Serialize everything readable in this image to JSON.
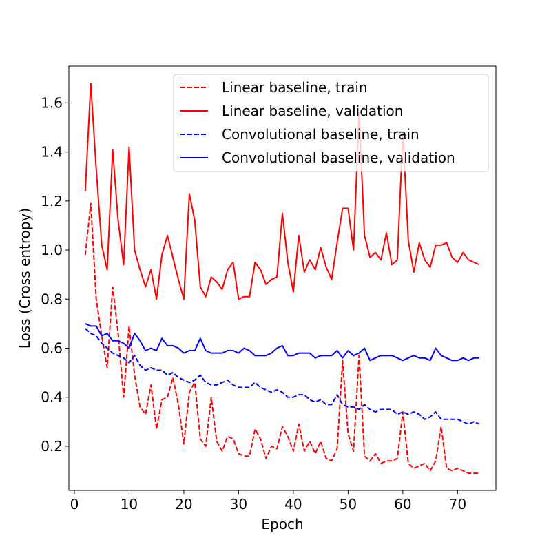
{
  "chart_data": {
    "type": "line",
    "title": "",
    "xlabel": "Epoch",
    "ylabel": "Loss (Cross entropy)",
    "xlim": [
      -1,
      77
    ],
    "ylim": [
      0.02,
      1.75
    ],
    "xticks": [
      0,
      10,
      20,
      30,
      40,
      50,
      60,
      70
    ],
    "yticks": [
      0.2,
      0.4,
      0.6,
      0.8,
      1.0,
      1.2,
      1.4,
      1.6
    ],
    "xtick_labels": [
      "0",
      "10",
      "20",
      "30",
      "40",
      "50",
      "60",
      "70"
    ],
    "ytick_labels": [
      "0.2",
      "0.4",
      "0.6",
      "0.8",
      "1.0",
      "1.2",
      "1.4",
      "1.6"
    ],
    "grid": false,
    "legend_position": "top-right",
    "x": [
      2,
      3,
      4,
      5,
      6,
      7,
      8,
      9,
      10,
      11,
      12,
      13,
      14,
      15,
      16,
      17,
      18,
      19,
      20,
      21,
      22,
      23,
      24,
      25,
      26,
      27,
      28,
      29,
      30,
      31,
      32,
      33,
      34,
      35,
      36,
      37,
      38,
      39,
      40,
      41,
      42,
      43,
      44,
      45,
      46,
      47,
      48,
      49,
      50,
      51,
      52,
      53,
      54,
      55,
      56,
      57,
      58,
      59,
      60,
      61,
      62,
      63,
      64,
      65,
      66,
      67,
      68,
      69,
      70,
      71,
      72,
      73,
      74
    ],
    "series": [
      {
        "name": "Linear baseline, train",
        "color": "#ff0000",
        "style": "dashed",
        "values": [
          0.98,
          1.19,
          0.8,
          0.65,
          0.52,
          0.85,
          0.66,
          0.4,
          0.69,
          0.49,
          0.36,
          0.33,
          0.45,
          0.27,
          0.39,
          0.4,
          0.48,
          0.37,
          0.21,
          0.42,
          0.46,
          0.23,
          0.2,
          0.4,
          0.22,
          0.18,
          0.24,
          0.23,
          0.17,
          0.16,
          0.16,
          0.27,
          0.23,
          0.15,
          0.2,
          0.19,
          0.28,
          0.24,
          0.18,
          0.29,
          0.18,
          0.22,
          0.17,
          0.22,
          0.15,
          0.14,
          0.19,
          0.55,
          0.25,
          0.18,
          0.57,
          0.16,
          0.14,
          0.17,
          0.13,
          0.14,
          0.14,
          0.15,
          0.34,
          0.13,
          0.11,
          0.12,
          0.13,
          0.1,
          0.14,
          0.28,
          0.11,
          0.1,
          0.11,
          0.1,
          0.09,
          0.09,
          0.09
        ]
      },
      {
        "name": "Linear baseline, validation",
        "color": "#ff0000",
        "style": "solid",
        "values": [
          1.24,
          1.68,
          1.33,
          1.02,
          0.92,
          1.41,
          1.12,
          0.94,
          1.42,
          1.0,
          0.92,
          0.85,
          0.92,
          0.8,
          0.98,
          1.06,
          0.97,
          0.88,
          0.8,
          1.23,
          1.12,
          0.85,
          0.81,
          0.89,
          0.87,
          0.84,
          0.92,
          0.95,
          0.8,
          0.81,
          0.81,
          0.95,
          0.92,
          0.86,
          0.88,
          0.89,
          1.15,
          0.95,
          0.83,
          1.06,
          0.91,
          0.96,
          0.92,
          1.01,
          0.93,
          0.88,
          1.03,
          1.17,
          1.17,
          1.0,
          1.56,
          1.06,
          0.97,
          0.99,
          0.96,
          1.07,
          0.94,
          0.96,
          1.48,
          1.04,
          0.91,
          1.03,
          0.96,
          0.93,
          1.02,
          1.02,
          1.03,
          0.97,
          0.95,
          0.99,
          0.96,
          0.95,
          0.94
        ]
      },
      {
        "name": "Convolutional baseline, train",
        "color": "#0000ff",
        "style": "dashed",
        "values": [
          0.68,
          0.66,
          0.65,
          0.62,
          0.6,
          0.58,
          0.57,
          0.56,
          0.54,
          0.57,
          0.53,
          0.51,
          0.52,
          0.51,
          0.51,
          0.49,
          0.5,
          0.48,
          0.47,
          0.46,
          0.47,
          0.49,
          0.46,
          0.45,
          0.45,
          0.46,
          0.47,
          0.45,
          0.44,
          0.44,
          0.44,
          0.46,
          0.44,
          0.43,
          0.42,
          0.43,
          0.42,
          0.4,
          0.4,
          0.41,
          0.41,
          0.39,
          0.38,
          0.39,
          0.37,
          0.37,
          0.41,
          0.37,
          0.36,
          0.36,
          0.35,
          0.37,
          0.35,
          0.34,
          0.35,
          0.35,
          0.35,
          0.33,
          0.34,
          0.33,
          0.34,
          0.33,
          0.31,
          0.32,
          0.34,
          0.31,
          0.31,
          0.31,
          0.31,
          0.3,
          0.29,
          0.3,
          0.29
        ]
      },
      {
        "name": "Convolutional baseline, validation",
        "color": "#0000ff",
        "style": "solid",
        "values": [
          0.7,
          0.69,
          0.69,
          0.65,
          0.66,
          0.63,
          0.63,
          0.62,
          0.6,
          0.66,
          0.63,
          0.59,
          0.6,
          0.59,
          0.64,
          0.61,
          0.61,
          0.6,
          0.58,
          0.59,
          0.59,
          0.64,
          0.59,
          0.58,
          0.58,
          0.58,
          0.59,
          0.59,
          0.58,
          0.6,
          0.59,
          0.57,
          0.57,
          0.57,
          0.58,
          0.6,
          0.61,
          0.57,
          0.57,
          0.58,
          0.58,
          0.58,
          0.56,
          0.57,
          0.57,
          0.57,
          0.59,
          0.56,
          0.59,
          0.57,
          0.58,
          0.6,
          0.55,
          0.56,
          0.57,
          0.57,
          0.57,
          0.56,
          0.55,
          0.56,
          0.57,
          0.56,
          0.56,
          0.55,
          0.6,
          0.57,
          0.56,
          0.55,
          0.55,
          0.56,
          0.55,
          0.56,
          0.56
        ]
      }
    ]
  }
}
